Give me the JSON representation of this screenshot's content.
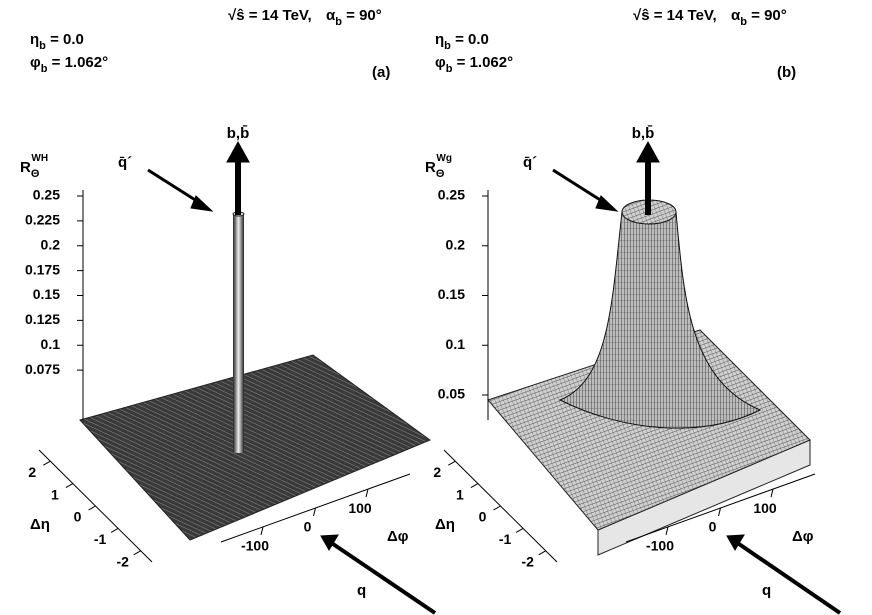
{
  "chart_data": [
    {
      "type": "surface",
      "panel_label": "(a)",
      "energy": "√ŝ = 14 TeV,",
      "alpha": {
        "symbol": "α",
        "sub": "b",
        "value": " = 90°"
      },
      "eta": {
        "symbol": "η",
        "sub": "b",
        "value": " = 0.0"
      },
      "phi": {
        "symbol": "φ",
        "sub": "b",
        "value": " = 1.062°"
      },
      "zlabel": {
        "symbol": "R",
        "sub": "Θ",
        "sup": "WH"
      },
      "zlim": [
        0.05,
        0.25
      ],
      "zticks": [
        0.25,
        0.225,
        0.2,
        0.175,
        0.15,
        0.125,
        0.1,
        0.075
      ],
      "xlabel": "Δφ",
      "xlim": [
        -180,
        180
      ],
      "xticks": [
        -100,
        0,
        100
      ],
      "ylabel": "Δη",
      "ylim": [
        -2.5,
        2.5
      ],
      "yticks": [
        2,
        1,
        0,
        -1,
        -2
      ],
      "arrow_labels": {
        "b": "b,b̄",
        "qbar": "q̄´",
        "q": "q"
      }
    },
    {
      "type": "surface",
      "panel_label": "(b)",
      "energy": "√ŝ = 14 TeV,",
      "alpha": {
        "symbol": "α",
        "sub": "b",
        "value": " = 90°"
      },
      "eta": {
        "symbol": "η",
        "sub": "b",
        "value": " = 0.0"
      },
      "phi": {
        "symbol": "φ",
        "sub": "b",
        "value": " = 1.062°"
      },
      "zlabel": {
        "symbol": "R",
        "sub": "Θ",
        "sup": "Wg"
      },
      "zlim": [
        0.05,
        0.25
      ],
      "zticks": [
        0.25,
        0.2,
        0.15,
        0.1,
        0.05
      ],
      "xlabel": "Δφ",
      "xlim": [
        -180,
        180
      ],
      "xticks": [
        -100,
        0,
        100
      ],
      "ylabel": "Δη",
      "ylim": [
        -2.5,
        2.5
      ],
      "yticks": [
        2,
        1,
        0,
        -1,
        -2
      ],
      "arrow_labels": {
        "b": "b,b̄",
        "qbar": "q̄´",
        "q": "q"
      }
    }
  ]
}
